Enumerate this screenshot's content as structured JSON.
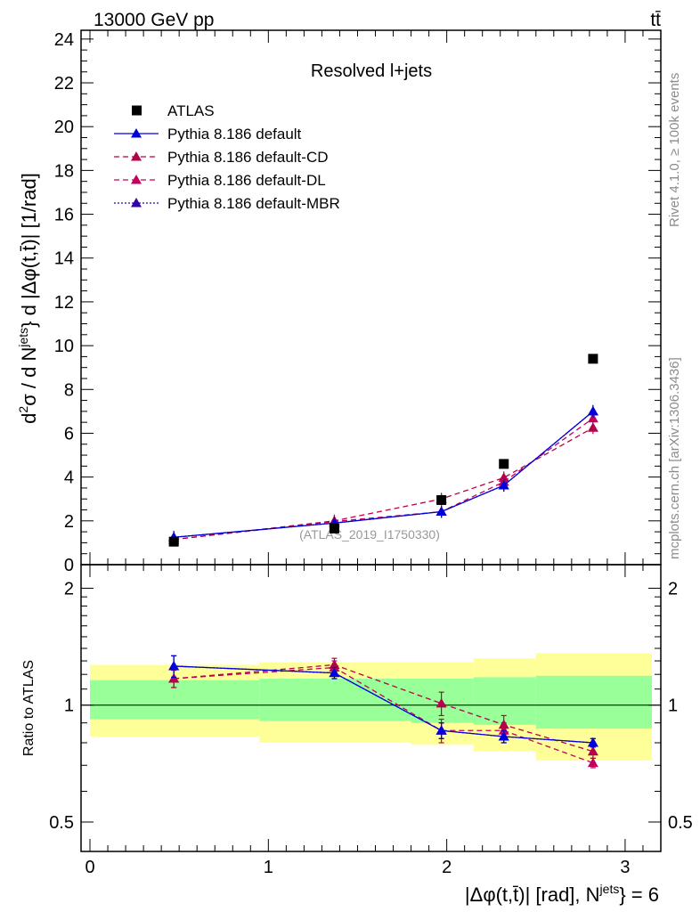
{
  "header": {
    "left_label": "13000 GeV pp",
    "right_label": "tt̄"
  },
  "side_notes": {
    "rivet": "Rivet 4.1.0, ≥ 100k events",
    "mcplots": "mcplots.cern.ch [arXiv:1306.3436]"
  },
  "chart_data": [
    {
      "type": "scatter",
      "panel": "main",
      "title": "Resolved l+jets",
      "watermark": "(ATLAS_2019_I1750330)",
      "ylabel_parts": [
        "d",
        "2",
        "σ / d N",
        "jets",
        "} d |Δφ(t,t̄)| [1/rad]"
      ],
      "ylim": [
        0,
        24.4
      ],
      "xlim": [
        -0.05,
        3.2
      ],
      "yticks": [
        0,
        2,
        4,
        6,
        8,
        10,
        12,
        14,
        16,
        18,
        20,
        22,
        24
      ],
      "x": [
        0.47,
        1.37,
        1.97,
        2.32,
        2.82
      ],
      "series": [
        {
          "name": "ATLAS",
          "style": "data",
          "color": "#000000",
          "values": [
            1.05,
            1.65,
            2.95,
            4.6,
            9.4
          ]
        },
        {
          "name": "Pythia 8.186 default",
          "style": "solid",
          "color": "#0000dd",
          "values": [
            1.25,
            1.9,
            2.42,
            3.62,
            7.0
          ]
        },
        {
          "name": "Pythia 8.186 default-CD",
          "style": "dashed",
          "color": "#b5004b",
          "values": [
            1.15,
            2.0,
            3.0,
            3.97,
            6.25
          ]
        },
        {
          "name": "Pythia 8.186 default-DL",
          "style": "dashed",
          "color": "#c2005f",
          "values": [
            1.15,
            1.97,
            2.42,
            3.78,
            6.68
          ]
        },
        {
          "name": "Pythia 8.186 default-MBR",
          "style": "dotted",
          "color": "#3300aa",
          "values": [
            1.25,
            1.9,
            2.42,
            3.62,
            7.0
          ]
        }
      ]
    },
    {
      "type": "scatter",
      "panel": "ratio",
      "ylabel": "Ratio to ATLAS",
      "xlabel_parts": [
        "|Δφ(t,t̄)| [rad], N",
        "jets",
        "} = 6"
      ],
      "yscale": "log",
      "ylim": [
        0.42,
        2.3
      ],
      "xlim": [
        -0.05,
        3.2
      ],
      "xticks": [
        0,
        1,
        2,
        3
      ],
      "yticks": [
        0.5,
        1,
        2
      ],
      "bands": [
        {
          "x0": 0.0,
          "x1": 0.95,
          "green": [
            0.92,
            1.16
          ],
          "yellow": [
            0.83,
            1.27
          ]
        },
        {
          "x0": 0.95,
          "x1": 1.8,
          "green": [
            0.91,
            1.17
          ],
          "yellow": [
            0.8,
            1.29
          ]
        },
        {
          "x0": 1.8,
          "x1": 2.15,
          "green": [
            0.9,
            1.17
          ],
          "yellow": [
            0.79,
            1.29
          ]
        },
        {
          "x0": 2.15,
          "x1": 2.5,
          "green": [
            0.89,
            1.18
          ],
          "yellow": [
            0.76,
            1.32
          ]
        },
        {
          "x0": 2.5,
          "x1": 3.15,
          "green": [
            0.87,
            1.19
          ],
          "yellow": [
            0.72,
            1.36
          ]
        }
      ],
      "x": [
        0.47,
        1.37,
        1.97,
        2.32,
        2.82
      ],
      "series": [
        {
          "name": "Pythia 8.186 default",
          "values": [
            1.26,
            1.21,
            0.86,
            0.83,
            0.8
          ],
          "errors": [
            0.08,
            0.04,
            0.04,
            0.03,
            0.02
          ]
        },
        {
          "name": "Pythia 8.186 default-CD",
          "values": [
            1.17,
            1.27,
            1.01,
            0.89,
            0.76
          ],
          "errors": [
            0.06,
            0.05,
            0.07,
            0.05,
            0.03
          ]
        },
        {
          "name": "Pythia 8.186 default-DL",
          "values": [
            1.17,
            1.25,
            0.86,
            0.86,
            0.71
          ],
          "errors": [
            0.06,
            0.05,
            0.06,
            0.04,
            0.02
          ]
        },
        {
          "name": "Pythia 8.186 default-MBR",
          "values": [
            1.26,
            1.21,
            0.86,
            0.83,
            0.8
          ],
          "errors": [
            0.08,
            0.04,
            0.04,
            0.03,
            0.02
          ]
        }
      ]
    }
  ]
}
